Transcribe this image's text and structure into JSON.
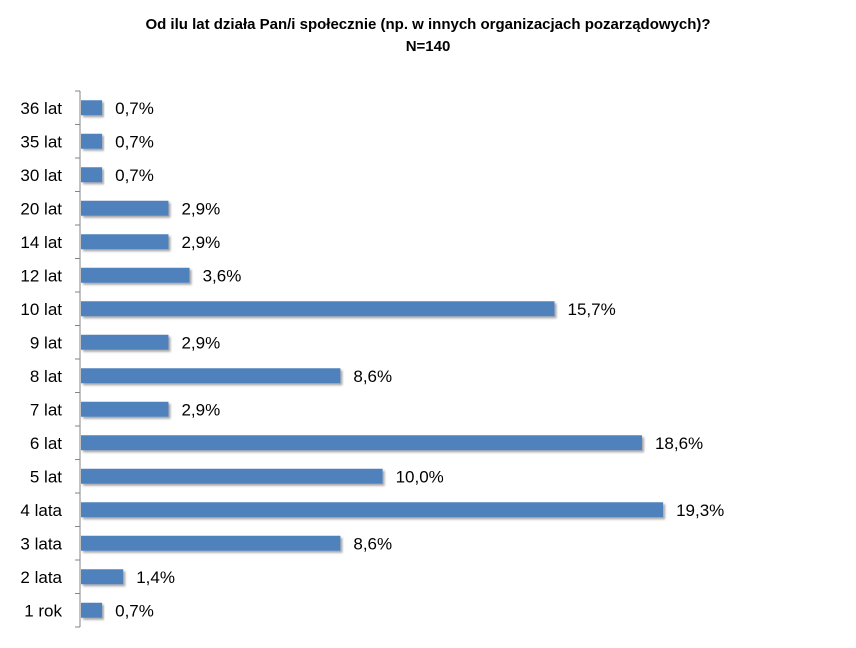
{
  "chart_data": {
    "type": "bar",
    "orientation": "horizontal",
    "title": "Od ilu lat działa Pan/i społecznie (np. w innych organizacjach pozarządowych)?",
    "subtitle": "N=140",
    "categories": [
      "36 lat",
      "35 lat",
      "30 lat",
      "20 lat",
      "14 lat",
      "12 lat",
      "10 lat",
      "9 lat",
      "8 lat",
      "7 lat",
      "6 lat",
      "5 lat",
      "4 lata",
      "3 lata",
      "2 lata",
      "1 rok"
    ],
    "values": [
      0.7,
      0.7,
      0.7,
      2.9,
      2.9,
      3.6,
      15.7,
      2.9,
      8.6,
      2.9,
      18.6,
      10.0,
      19.3,
      8.6,
      1.4,
      0.7
    ],
    "labels": [
      "0,7%",
      "0,7%",
      "0,7%",
      "2,9%",
      "2,9%",
      "3,6%",
      "15,7%",
      "2,9%",
      "8,6%",
      "2,9%",
      "18,6%",
      "10,0%",
      "19,3%",
      "8,6%",
      "1,4%",
      "0,7%"
    ],
    "bar_color": "#4F81BD",
    "grid": false,
    "legend": "none"
  }
}
